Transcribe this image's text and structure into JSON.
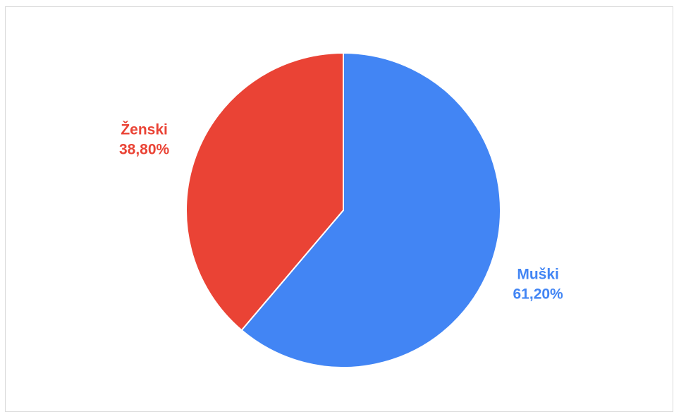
{
  "chart_data": {
    "type": "pie",
    "slices": [
      {
        "label": "Muški",
        "percent_label": "61,20%",
        "value": 61.2,
        "color": "#4285f4"
      },
      {
        "label": "Ženski",
        "percent_label": "38,80%",
        "value": 38.8,
        "color": "#ea4335"
      }
    ],
    "start": "12 o'clock",
    "direction": "clockwise",
    "legend": "none",
    "labels": "outside"
  }
}
